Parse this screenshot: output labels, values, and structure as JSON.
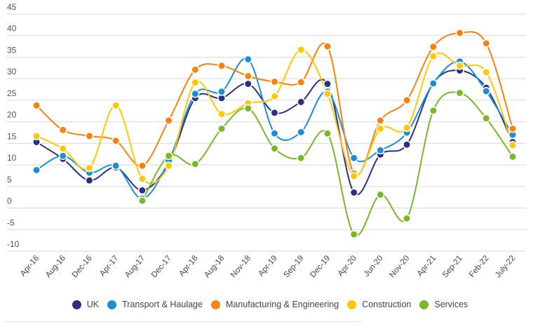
{
  "chart_data": {
    "type": "line",
    "title": "",
    "xlabel": "",
    "ylabel": "",
    "ylim": [
      -10,
      45
    ],
    "yticks": [
      45,
      40,
      35,
      30,
      25,
      20,
      15,
      10,
      5,
      0,
      -5,
      -10
    ],
    "grid": true,
    "legend_position": "bottom",
    "smooth": true,
    "categories": [
      "Apr-16",
      "Aug-16",
      "Dec-16",
      "Apr-17",
      "Aug-17",
      "Dec-17",
      "Apr-18",
      "Aug-18",
      "Nov-18",
      "Apr-19",
      "Sep-19",
      "Dec-19",
      "Apr-20",
      "Jun-20",
      "Nov-20",
      "Apr-21",
      "Sep-21",
      "Feb-22",
      "July-22"
    ],
    "series": [
      {
        "name": "UK",
        "color": "#2B2F85",
        "values": [
          15.3,
          11.4,
          6.4,
          9.4,
          4.1,
          10.4,
          25.5,
          25.5,
          28.8,
          22.1,
          24.6,
          28.8,
          3.6,
          12.4,
          14.7,
          29.0,
          31.9,
          27.9,
          15.3
        ]
      },
      {
        "name": "Transport & Haulage",
        "color": "#1B8FD2",
        "values": [
          8.8,
          12.1,
          8.2,
          9.8,
          2.2,
          10.9,
          26.5,
          27.0,
          34.5,
          17.3,
          17.6,
          27.0,
          11.6,
          13.4,
          17.5,
          28.9,
          34.0,
          27.1,
          17.0
        ]
      },
      {
        "name": "Manufacturing & Engineering",
        "color": "#F7830F",
        "values": [
          23.8,
          18.1,
          16.7,
          15.6,
          9.8,
          20.3,
          32.1,
          33.0,
          30.6,
          29.3,
          29.2,
          37.5,
          8.0,
          20.3,
          25.0,
          37.4,
          40.6,
          38.2,
          18.4
        ]
      },
      {
        "name": "Construction",
        "color": "#FFC80A",
        "values": [
          16.7,
          13.8,
          9.3,
          23.8,
          6.8,
          9.8,
          29.1,
          21.8,
          24.3,
          25.9,
          36.7,
          26.5,
          7.4,
          18.4,
          18.6,
          35.2,
          33.0,
          31.5,
          14.6
        ]
      },
      {
        "name": "Services",
        "color": "#79B82B",
        "values": [
          null,
          null,
          null,
          null,
          1.7,
          12.1,
          10.2,
          18.4,
          23.1,
          13.8,
          11.6,
          17.3,
          -6.1,
          3.1,
          -2.4,
          22.6,
          26.7,
          20.8,
          11.9
        ]
      }
    ]
  }
}
